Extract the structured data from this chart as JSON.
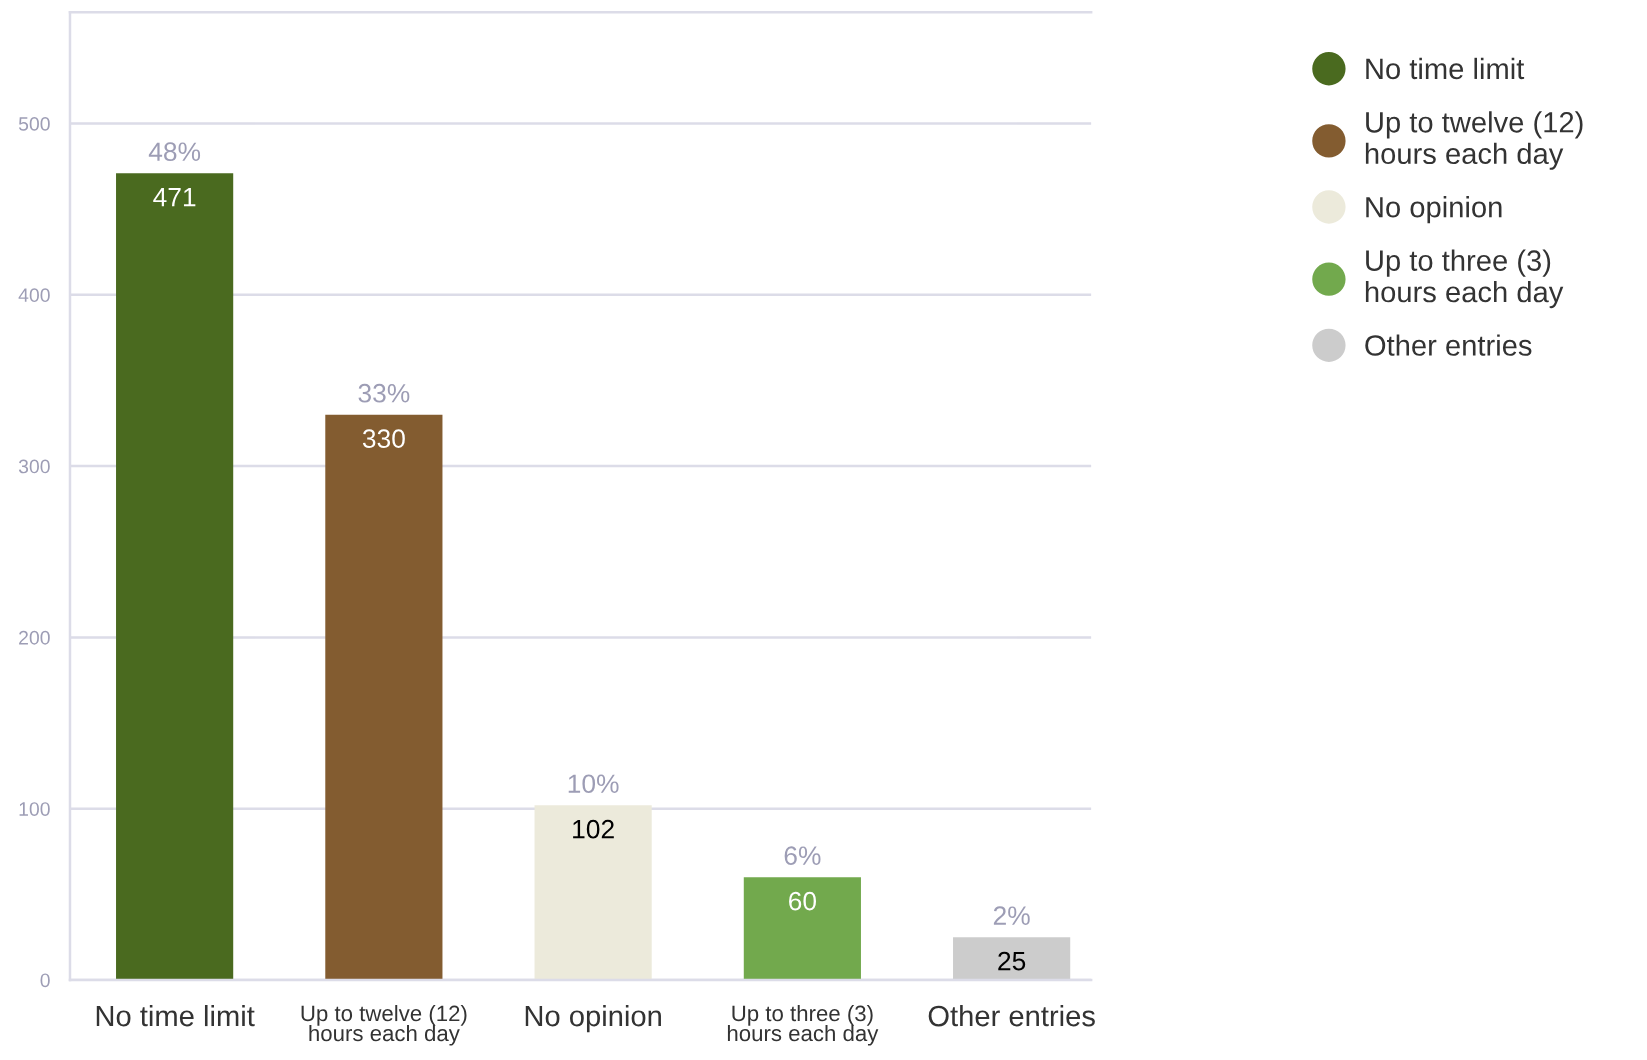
{
  "chart_data": {
    "type": "bar",
    "categories": [
      "No time limit",
      "Up to twelve (12)\nhours each day",
      "No opinion",
      "Up to three (3)\nhours each day",
      "Other entries"
    ],
    "series": [
      {
        "name": "No time limit",
        "color": "#4a6a1f",
        "values": [
          471,
          null,
          null,
          null,
          null
        ]
      },
      {
        "name": "Up to twelve (12)\nhours each day",
        "color": "#835c30",
        "values": [
          null,
          330,
          null,
          null,
          null
        ]
      },
      {
        "name": "No opinion",
        "color": "#eceadb",
        "values": [
          null,
          null,
          102,
          null,
          null
        ]
      },
      {
        "name": "Up to three (3)\nhours each day",
        "color": "#72a94d",
        "values": [
          null,
          null,
          null,
          60,
          null
        ]
      },
      {
        "name": "Other entries",
        "color": "#cccccc",
        "values": [
          null,
          null,
          null,
          null,
          25
        ]
      }
    ],
    "data_labels": true,
    "annotations": [
      {
        "text": "48%",
        "x": "No time limit",
        "y": 471
      },
      {
        "text": "33%",
        "x": "Up to twelve (12)\nhours each day",
        "y": 330
      },
      {
        "text": "10%",
        "x": "No opinion",
        "y": 102
      },
      {
        "text": "6%",
        "x": "Up to three (3)\nhours each day",
        "y": 60
      },
      {
        "text": "2%",
        "x": "Other entries",
        "y": 25
      }
    ],
    "ylim": [
      0,
      565
    ],
    "yticks": [
      0,
      100,
      200,
      300,
      400,
      500
    ],
    "grid": "y",
    "legend": "top right"
  }
}
